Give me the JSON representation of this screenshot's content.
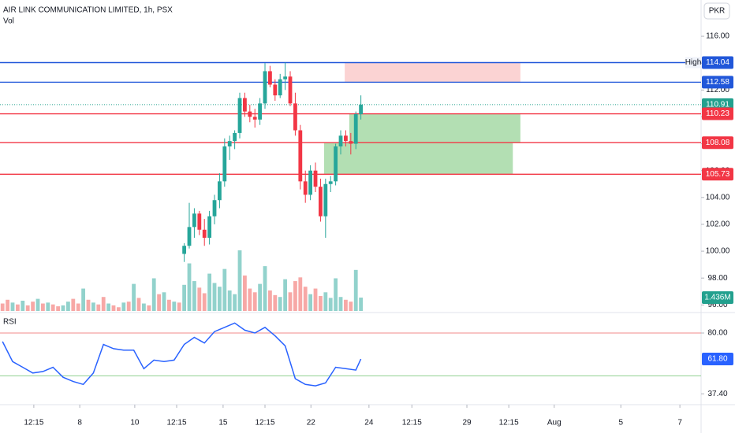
{
  "chart_data": {
    "type": "candlestick",
    "title": "AIR LINK COMMUNICATION LIMITED, 1h, PSX",
    "currency": "PKR",
    "volume_title": "Vol",
    "xlim": [
      -0.5,
      138.4
    ],
    "xticks": [
      {
        "value": 6.2,
        "label": "12:15"
      },
      {
        "value": 15.3,
        "label": "8"
      },
      {
        "value": 26.2,
        "label": "10"
      },
      {
        "value": 34.5,
        "label": "12:15"
      },
      {
        "value": 43.7,
        "label": "15"
      },
      {
        "value": 52,
        "label": "12:15"
      },
      {
        "value": 61.1,
        "label": "22"
      },
      {
        "value": 72.6,
        "label": "24"
      },
      {
        "value": 81.1,
        "label": "12:15"
      },
      {
        "value": 92,
        "label": "29"
      },
      {
        "value": 100.3,
        "label": "12:15"
      },
      {
        "value": 109.3,
        "label": "Aug"
      },
      {
        "value": 122.5,
        "label": "5"
      },
      {
        "value": 134.2,
        "label": "7"
      }
    ],
    "ylim": [
      95.55,
      118.7
    ],
    "yticks": [
      {
        "value": 96,
        "label": "96.00"
      },
      {
        "value": 98,
        "label": "98.00"
      },
      {
        "value": 100,
        "label": "100.00"
      },
      {
        "value": 102,
        "label": "102.00"
      },
      {
        "value": 104,
        "label": "104.00"
      },
      {
        "value": 106,
        "label": "106.00"
      },
      {
        "value": 108,
        "label": "108.00"
      },
      {
        "value": 110,
        "label": "110.00"
      },
      {
        "value": 112,
        "label": "112.00"
      },
      {
        "value": 114,
        "label": "114.00"
      },
      {
        "value": 116,
        "label": "116.00"
      }
    ],
    "color_up": "#26a69a",
    "color_down": "#f23645",
    "candles": {
      "x": [
        36,
        37,
        38,
        39,
        40,
        41,
        42,
        43,
        44,
        45,
        46,
        47,
        48,
        49,
        50,
        51,
        52,
        53,
        54,
        55,
        56,
        57,
        58,
        59,
        60,
        61,
        62,
        63,
        64,
        65,
        66,
        67,
        68,
        69,
        70,
        71
      ],
      "open": [
        99.8,
        100.4,
        101.8,
        102.8,
        101.6,
        101.0,
        102.6,
        103.8,
        105.2,
        107.8,
        108.2,
        108.8,
        111.4,
        110.4,
        110.0,
        109.8,
        111.0,
        113.4,
        112.4,
        111.6,
        112.8,
        113.0,
        111.0,
        109.0,
        105.2,
        104.2,
        106.0,
        104.8,
        102.6,
        105.0,
        105.2,
        107.8,
        108.6,
        108.2,
        108.0,
        110.2
      ],
      "high": [
        100.6,
        103.6,
        103.2,
        103.0,
        102.4,
        103.0,
        104.2,
        105.8,
        108.4,
        108.6,
        109.0,
        111.8,
        111.8,
        110.9,
        110.6,
        111.4,
        114.0,
        113.8,
        112.8,
        113.2,
        114.04,
        113.4,
        111.8,
        109.4,
        106.0,
        106.4,
        106.6,
        105.4,
        105.4,
        105.6,
        108.0,
        109.0,
        109.0,
        108.8,
        110.4,
        111.6
      ],
      "low": [
        99.2,
        100.2,
        101.0,
        101.2,
        100.4,
        100.5,
        102.0,
        103.2,
        104.8,
        106.8,
        107.6,
        108.4,
        110.0,
        109.6,
        109.2,
        109.4,
        110.6,
        112.2,
        111.2,
        111.4,
        112.0,
        110.8,
        108.6,
        104.6,
        103.6,
        103.8,
        104.4,
        102.2,
        101.0,
        104.4,
        104.9,
        107.2,
        107.8,
        107.2,
        107.6,
        109.8
      ],
      "close": [
        100.4,
        101.8,
        102.8,
        101.6,
        101.0,
        102.6,
        103.8,
        105.2,
        107.8,
        108.2,
        108.8,
        111.4,
        110.4,
        110.0,
        109.8,
        111.0,
        113.4,
        112.4,
        111.6,
        112.8,
        113.0,
        111.0,
        109.0,
        105.2,
        104.2,
        106.0,
        104.8,
        102.6,
        105.0,
        105.2,
        107.8,
        108.6,
        108.2,
        108.0,
        110.2,
        110.91
      ]
    },
    "levels": [
      {
        "value": 114.04,
        "label": "114.04",
        "color": "#2157d9",
        "tag": "High"
      },
      {
        "value": 112.58,
        "label": "112.58",
        "color": "#2157d9"
      },
      {
        "value": 110.91,
        "label": "110.91",
        "color": "#22a08e",
        "dotted": true
      },
      {
        "value": 110.23,
        "label": "110.23",
        "color": "#f23645"
      },
      {
        "value": 108.08,
        "label": "108.08",
        "color": "#f23645"
      },
      {
        "value": 105.73,
        "label": "105.73",
        "color": "#f23645"
      }
    ],
    "zones": [
      {
        "from": 112.58,
        "to": 114.04,
        "start": 67.8,
        "end": 102.6,
        "color": "#fbd3d3"
      },
      {
        "from": 108.08,
        "to": 110.23,
        "start": 68.7,
        "end": 102.6,
        "color": "#b3dfb3"
      },
      {
        "from": 105.73,
        "to": 108.08,
        "start": 63.7,
        "end": 101.1,
        "color": "#b3dfb3"
      }
    ],
    "volume": {
      "ylim": [
        0,
        9700000
      ],
      "last_label": "1.436M",
      "last_color": "#22a08e",
      "values": [
        800000,
        1200000,
        900000,
        700000,
        1100000,
        600000,
        1000000,
        1300000,
        800000,
        900000,
        700000,
        500000,
        600000,
        1000000,
        1300000,
        800000,
        2400000,
        1200000,
        900000,
        700000,
        1500000,
        800000,
        600000,
        400000,
        900000,
        1000000,
        2900000,
        1400000,
        800000,
        600000,
        3500000,
        1800000,
        2000000,
        1200000,
        1000000,
        900000,
        2800000,
        5100000,
        3200000,
        2500000,
        1900000,
        4000000,
        3000000,
        2600000,
        4500000,
        2200000,
        1800000,
        6500000,
        3800000,
        2400000,
        2000000,
        2900000,
        4800000,
        2200000,
        1700000,
        1500000,
        3400000,
        2000000,
        3200000,
        3600000,
        2600000,
        1800000,
        2400000,
        1600000,
        2000000,
        1400000,
        3500000,
        1500000,
        1200000,
        1000000,
        4400000,
        1436000
      ],
      "colors": [
        "#f7a8a6",
        "#f7a8a6",
        "#92d2cc",
        "#f7a8a6",
        "#92d2cc",
        "#f7a8a6",
        "#f7a8a6",
        "#92d2cc",
        "#f7a8a6",
        "#92d2cc",
        "#f7a8a6",
        "#f7a8a6",
        "#92d2cc",
        "#92d2cc",
        "#f7a8a6",
        "#f7a8a6",
        "#92d2cc",
        "#f7a8a6",
        "#92d2cc",
        "#f7a8a6",
        "#f7a8a6",
        "#92d2cc",
        "#f7a8a6",
        "#f7a8a6",
        "#92d2cc",
        "#f7a8a6",
        "#92d2cc",
        "#f7a8a6",
        "#92d2cc",
        "#f7a8a6",
        "#92d2cc",
        "#f7a8a6",
        "#92d2cc",
        "#f7a8a6",
        "#92d2cc",
        "#f7a8a6",
        "#92d2cc",
        "#92d2cc",
        "#92d2cc",
        "#f7a8a6",
        "#f7a8a6",
        "#92d2cc",
        "#92d2cc",
        "#92d2cc",
        "#92d2cc",
        "#92d2cc",
        "#92d2cc",
        "#92d2cc",
        "#f7a8a6",
        "#f7a8a6",
        "#f7a8a6",
        "#92d2cc",
        "#92d2cc",
        "#f7a8a6",
        "#f7a8a6",
        "#92d2cc",
        "#92d2cc",
        "#f7a8a6",
        "#f7a8a6",
        "#f7a8a6",
        "#f7a8a6",
        "#92d2cc",
        "#f7a8a6",
        "#f7a8a6",
        "#92d2cc",
        "#92d2cc",
        "#92d2cc",
        "#92d2cc",
        "#f7a8a6",
        "#f7a8a6",
        "#92d2cc",
        "#92d2cc"
      ]
    },
    "rsi": {
      "title": "RSI",
      "color": "#2962ff",
      "ylim": [
        32.0,
        92.7
      ],
      "yticks": [
        {
          "value": 80,
          "label": "80.00"
        },
        {
          "value": 37.4,
          "label": "37.40"
        }
      ],
      "upper_band": 80,
      "upper_color": "#f28b8b",
      "lower_band": 50,
      "lower_color": "#8fcf8f",
      "current": 61.8,
      "current_label": "61.80",
      "x": [
        0,
        2,
        4,
        6,
        8,
        10,
        12,
        14,
        16,
        18,
        20,
        22,
        24,
        26,
        28,
        30,
        32,
        34,
        36,
        38,
        40,
        42,
        44,
        46,
        48,
        50,
        52,
        54,
        56,
        58,
        60,
        62,
        64,
        66,
        68,
        70,
        71
      ],
      "values": [
        74,
        60,
        56,
        52,
        53,
        56,
        49,
        46,
        44,
        52,
        72,
        69,
        68,
        68,
        55,
        61,
        60,
        61,
        72,
        77,
        73,
        81,
        84,
        87,
        82,
        80,
        84,
        78,
        71,
        48,
        44,
        43,
        45,
        56,
        55,
        54,
        61.8
      ]
    }
  }
}
